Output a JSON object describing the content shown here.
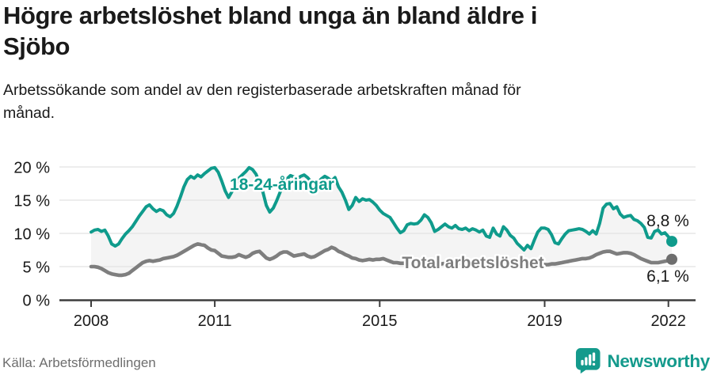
{
  "footer": {
    "source": "Källa: Arbetsförmedlingen",
    "brand": "Newsworthy",
    "brand_icon": "newsworthy-bar-chart-badge-icon"
  },
  "colors": {
    "teal": "#0f9b8c",
    "gray_line": "#7e7e7e",
    "gray_dot": "#6e6e6e",
    "area_fill": "#f4f4f4",
    "grid": "#e2e2e2",
    "axis": "#3d3d3d",
    "text": "#1a1a1a",
    "muted_text": "#6e6e6e"
  },
  "chart_data": {
    "type": "line",
    "title": "Högre arbetslöshet bland unga än bland äldre i\nSjöbo",
    "subtitle": "Arbetssökande som andel av den registerbaserade arbetskraften månad för\nmånad.",
    "x_unit": "month",
    "x_start": "2008-01",
    "x_end": "2022-02",
    "ylim": [
      0,
      21
    ],
    "grid": true,
    "legend_position": "inline-labels",
    "y_ticks": [
      {
        "value": 0,
        "label": "0 %"
      },
      {
        "value": 5,
        "label": "5 %"
      },
      {
        "value": 10,
        "label": "10 %"
      },
      {
        "value": 15,
        "label": "15 %"
      },
      {
        "value": 20,
        "label": "20 %"
      }
    ],
    "x_ticks": [
      {
        "year": 2008,
        "label": "2008"
      },
      {
        "year": 2011,
        "label": "2011"
      },
      {
        "year": 2015,
        "label": "2015"
      },
      {
        "year": 2019,
        "label": "2019"
      },
      {
        "year": 2022,
        "label": "2022"
      }
    ],
    "series": [
      {
        "name": "18-24-åringar",
        "color": "#0f9b8c",
        "end_label": "8,8 %",
        "end_value": 8.8,
        "values": [
          10.2,
          10.5,
          10.6,
          10.3,
          10.5,
          9.6,
          8.4,
          8.1,
          8.4,
          9.2,
          9.9,
          10.4,
          11.0,
          11.8,
          12.6,
          13.3,
          14.0,
          14.3,
          13.7,
          13.3,
          13.6,
          13.4,
          12.8,
          12.5,
          13.0,
          14.1,
          15.5,
          17.0,
          18.1,
          18.6,
          18.3,
          18.8,
          18.5,
          19.0,
          19.4,
          19.8,
          19.9,
          19.2,
          17.9,
          16.4,
          15.4,
          16.3,
          17.4,
          18.3,
          18.8,
          19.3,
          19.9,
          19.6,
          18.9,
          17.6,
          16.2,
          14.2,
          13.2,
          13.8,
          14.9,
          16.2,
          17.4,
          18.2,
          18.7,
          18.5,
          18.2,
          18.6,
          18.8,
          18.4,
          17.8,
          17.3,
          17.6,
          18.2,
          18.6,
          18.3,
          17.9,
          18.4,
          17.0,
          16.2,
          15.0,
          13.6,
          14.2,
          15.4,
          14.8,
          15.2,
          15.0,
          15.1,
          14.7,
          14.2,
          13.5,
          13.0,
          12.7,
          12.4,
          11.6,
          10.8,
          10.1,
          10.4,
          11.3,
          11.5,
          11.4,
          11.5,
          12.0,
          12.8,
          12.4,
          11.6,
          10.3,
          10.6,
          11.0,
          11.4,
          11.0,
          10.8,
          11.2,
          10.7,
          10.6,
          10.8,
          10.4,
          10.7,
          10.5,
          10.2,
          10.5,
          9.6,
          9.4,
          10.8,
          9.9,
          9.6,
          11.0,
          10.5,
          9.7,
          9.3,
          8.5,
          8.0,
          7.5,
          8.2,
          7.7,
          9.0,
          10.2,
          10.8,
          10.8,
          10.6,
          9.8,
          8.6,
          8.4,
          9.2,
          9.9,
          10.4,
          10.5,
          10.6,
          10.7,
          10.6,
          10.3,
          9.9,
          10.4,
          9.9,
          11.5,
          13.8,
          14.4,
          14.5,
          13.7,
          14.0,
          12.9,
          12.4,
          12.6,
          12.7,
          12.1,
          11.9,
          11.5,
          10.9,
          9.4,
          9.3,
          10.3,
          10.5,
          9.9,
          10.1,
          9.5,
          8.8
        ]
      },
      {
        "name": "Total arbetslöshet",
        "color": "#7e7e7e",
        "end_label": "6,1 %",
        "end_value": 6.1,
        "values": [
          5.0,
          5.0,
          4.9,
          4.7,
          4.4,
          4.1,
          3.9,
          3.8,
          3.7,
          3.7,
          3.8,
          4.0,
          4.4,
          4.8,
          5.2,
          5.6,
          5.8,
          5.9,
          5.8,
          5.9,
          6.0,
          6.2,
          6.3,
          6.4,
          6.5,
          6.7,
          7.0,
          7.3,
          7.6,
          7.9,
          8.2,
          8.4,
          8.3,
          8.2,
          7.8,
          7.5,
          7.4,
          7.0,
          6.6,
          6.5,
          6.4,
          6.4,
          6.5,
          6.8,
          6.6,
          6.4,
          6.6,
          7.0,
          7.2,
          7.3,
          6.8,
          6.3,
          6.1,
          6.3,
          6.6,
          7.0,
          7.2,
          7.2,
          6.9,
          6.6,
          6.7,
          6.8,
          6.9,
          6.6,
          6.4,
          6.5,
          6.8,
          7.1,
          7.4,
          7.6,
          7.9,
          7.7,
          7.3,
          7.1,
          6.8,
          6.6,
          6.3,
          6.2,
          6.0,
          5.9,
          6.0,
          6.1,
          6.0,
          6.1,
          6.1,
          6.2,
          6.0,
          5.8,
          5.6,
          5.6,
          5.5,
          5.5,
          5.6,
          5.6,
          5.7,
          5.7,
          5.8,
          5.9,
          5.8,
          5.7,
          5.6,
          5.5,
          5.4,
          5.5,
          5.6,
          5.6,
          5.5,
          5.5,
          5.5,
          5.6,
          5.5,
          5.4,
          5.4,
          5.3,
          5.3,
          5.4,
          5.5,
          5.5,
          5.4,
          5.4,
          5.5,
          5.5,
          5.4,
          5.3,
          5.3,
          5.2,
          5.3,
          5.3,
          5.4,
          5.4,
          5.5,
          5.5,
          5.3,
          5.3,
          5.4,
          5.4,
          5.5,
          5.6,
          5.7,
          5.8,
          5.9,
          6.0,
          6.1,
          6.2,
          6.2,
          6.3,
          6.5,
          6.8,
          7.0,
          7.2,
          7.3,
          7.3,
          7.1,
          6.9,
          7.0,
          7.1,
          7.1,
          7.0,
          6.8,
          6.5,
          6.2,
          6.0,
          5.8,
          5.6,
          5.6,
          5.6,
          5.7,
          5.8,
          5.9,
          6.1
        ]
      }
    ]
  }
}
